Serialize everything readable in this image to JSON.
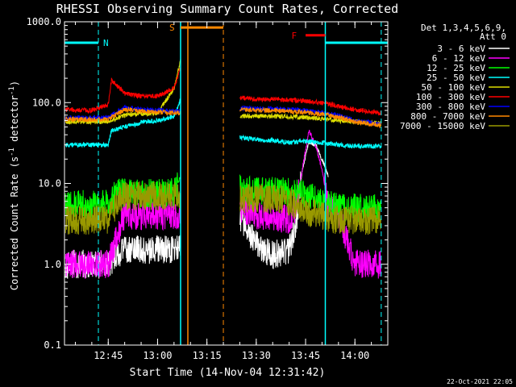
{
  "chart_data": {
    "type": "line",
    "title": "RHESSI Observing Summary Count Rates, Corrected",
    "xlabel": "Start Time (14-Nov-04 12:31:42)",
    "ylabel": "Corrected Count Rate (s",
    "ylabel_sup1": "-1",
    "ylabel_mid": " detector",
    "ylabel_sup2": "-1",
    "ylabel_end": ")",
    "yscale": "log",
    "ylim": [
      0.1,
      1000
    ],
    "xlim": [
      "12:31:42",
      "14:10:00"
    ],
    "ytick_labels": [
      "0.1",
      "1.0",
      "10.0",
      "100.0",
      "1000.0"
    ],
    "ytick_values": [
      0.1,
      1,
      10,
      100,
      1000
    ],
    "xtick_labels": [
      "12:45",
      "13:00",
      "13:15",
      "13:30",
      "13:45",
      "14:00"
    ],
    "xtick_values": [
      "12:45",
      "13:00",
      "13:15",
      "13:30",
      "13:45",
      "14:00"
    ],
    "grid": false,
    "legend_header": [
      "Det 1,3,4,5,6,9,",
      "Att 0"
    ],
    "legend_placement": "right",
    "series": [
      {
        "name": "3 - 6 keV",
        "color": "#ffffff",
        "x": [
          "12:32",
          "12:40",
          "12:45",
          "12:50",
          "12:55",
          "13:00",
          "13:05",
          "13:25",
          "13:30",
          "13:35",
          "13:40",
          "13:42",
          "13:44",
          "13:46",
          "13:48",
          "13:50",
          "13:52"
        ],
        "y": [
          1.0,
          1.0,
          1.0,
          1.5,
          1.5,
          1.5,
          1.5,
          4.0,
          1.8,
          1.3,
          1.5,
          3.0,
          15,
          32,
          30,
          20,
          12
        ]
      },
      {
        "name": "6 - 12 keV",
        "color": "#ff00ff",
        "x": [
          "12:32",
          "12:40",
          "12:45",
          "12:48",
          "12:50",
          "12:55",
          "13:00",
          "13:05",
          "13:25",
          "13:30",
          "13:35",
          "13:40",
          "13:42",
          "13:44",
          "13:46",
          "13:48",
          "13:50",
          "13:52",
          "13:55",
          "14:00",
          "14:05",
          "14:08"
        ],
        "y": [
          1.0,
          1.0,
          1.0,
          2.5,
          4.0,
          4.0,
          4.0,
          4.0,
          5.0,
          4.0,
          4.0,
          3.5,
          5.0,
          15,
          45,
          30,
          15,
          5.0,
          4.0,
          1.0,
          1.0,
          1.0
        ]
      },
      {
        "name": "12 - 25 keV",
        "color": "#00ff00",
        "x": [
          "12:32",
          "12:40",
          "12:45",
          "12:48",
          "12:50",
          "12:55",
          "13:00",
          "13:05",
          "13:07",
          "13:25",
          "13:30",
          "13:35",
          "13:40",
          "13:45",
          "13:50",
          "13:55",
          "14:00",
          "14:05",
          "14:08"
        ],
        "y": [
          5.5,
          5.5,
          5.5,
          8.0,
          7.5,
          7.5,
          7.5,
          8.0,
          12,
          8.5,
          8.0,
          8.0,
          8.0,
          7.5,
          6.0,
          5.0,
          5.0,
          5.0,
          5.0
        ]
      },
      {
        "name": "25 - 50 keV",
        "color": "#00ffff",
        "x": [
          "12:32",
          "12:40",
          "12:45",
          "12:46",
          "12:50",
          "12:55",
          "13:00",
          "13:05",
          "13:07",
          "13:25",
          "13:30",
          "13:35",
          "13:40",
          "13:45",
          "13:50",
          "13:55",
          "14:00",
          "14:05",
          "14:08"
        ],
        "y": [
          30,
          30,
          30,
          45,
          50,
          57,
          60,
          68,
          110,
          37,
          35,
          34,
          32,
          33,
          32,
          30,
          29,
          29,
          29
        ]
      },
      {
        "name": "50 - 100 keV",
        "color": "#dddd00",
        "x": [
          "12:32",
          "12:40",
          "12:45",
          "12:50",
          "12:55",
          "13:00",
          "13:05",
          "13:07",
          "13:25",
          "13:30",
          "13:35",
          "13:40",
          "13:45",
          "13:50",
          "13:55",
          "14:00",
          "14:05",
          "14:08"
        ],
        "y": [
          58,
          58,
          58,
          70,
          73,
          74,
          150,
          330,
          68,
          68,
          68,
          67,
          66,
          63,
          60,
          58,
          56,
          55
        ]
      },
      {
        "name": "100 - 300 keV",
        "color": "#ff0000",
        "x": [
          "12:32",
          "12:40",
          "12:45",
          "12:46",
          "12:50",
          "12:55",
          "13:00",
          "13:05",
          "13:07",
          "13:25",
          "13:30",
          "13:35",
          "13:40",
          "13:45",
          "13:50",
          "13:55",
          "14:00",
          "14:05",
          "14:08"
        ],
        "y": [
          82,
          80,
          95,
          190,
          130,
          120,
          120,
          150,
          270,
          115,
          110,
          110,
          108,
          105,
          100,
          90,
          82,
          76,
          75
        ]
      },
      {
        "name": "300 - 800 keV",
        "color": "#0000ff",
        "x": [
          "12:32",
          "12:40",
          "12:45",
          "12:50",
          "12:55",
          "13:00",
          "13:05",
          "13:07",
          "13:25",
          "13:30",
          "13:35",
          "13:40",
          "13:45",
          "13:50",
          "13:55",
          "14:00",
          "14:05",
          "14:08"
        ],
        "y": [
          65,
          65,
          65,
          88,
          82,
          80,
          78,
          78,
          85,
          84,
          84,
          82,
          80,
          75,
          70,
          60,
          56,
          55
        ]
      },
      {
        "name": "800 - 7000 keV",
        "color": "#ff8800",
        "x": [
          "12:32",
          "12:40",
          "12:45",
          "12:50",
          "12:55",
          "13:00",
          "13:05",
          "13:07",
          "13:25",
          "13:30",
          "13:35",
          "13:40",
          "13:45",
          "13:50",
          "13:55",
          "14:00",
          "14:05",
          "14:08"
        ],
        "y": [
          62,
          62,
          62,
          82,
          78,
          76,
          74,
          74,
          82,
          80,
          80,
          78,
          76,
          72,
          66,
          58,
          54,
          53
        ]
      },
      {
        "name": "7000 - 15000 keV",
        "color": "#999900",
        "x": [
          "12:32",
          "12:40",
          "12:45",
          "12:48",
          "12:50",
          "12:55",
          "13:00",
          "13:05",
          "13:07",
          "13:25",
          "13:30",
          "13:35",
          "13:40",
          "13:45",
          "13:50",
          "13:55",
          "14:00",
          "14:05",
          "14:08"
        ],
        "y": [
          3.5,
          3.5,
          3.5,
          6.0,
          7.0,
          7.0,
          7.0,
          7.0,
          7.0,
          6.5,
          6.5,
          6.5,
          6.0,
          4.5,
          4.0,
          3.5,
          3.5,
          3.5,
          3.5
        ]
      }
    ],
    "gaps": [
      [
        "13:07",
        "13:25"
      ]
    ],
    "markers": [
      {
        "label": "N",
        "color": "#00ffff",
        "solid_x": [
          "12:31:42",
          "12:42"
        ],
        "solid_y": 550,
        "dash_x": "12:42"
      },
      {
        "label": "S",
        "color": "#ff8800",
        "solid_x": [
          "13:07",
          "13:20"
        ],
        "solid_y": 850,
        "dash_x": "13:20"
      },
      {
        "label": "F",
        "color": "#ff0000",
        "solid_x": [
          "13:45",
          "13:51"
        ],
        "solid_y": 680
      },
      {
        "color": "#00ffff",
        "solid_x": [
          "13:51",
          "14:10"
        ],
        "solid_y": 550,
        "dash_x": "14:08"
      }
    ],
    "vlines": [
      {
        "x": "13:07",
        "color": "#00ffff"
      },
      {
        "x": "13:07",
        "color": "#ff8800"
      },
      {
        "x": "13:51",
        "color": "#00ffff"
      }
    ],
    "footer": "22-Oct-2021 22:05"
  }
}
